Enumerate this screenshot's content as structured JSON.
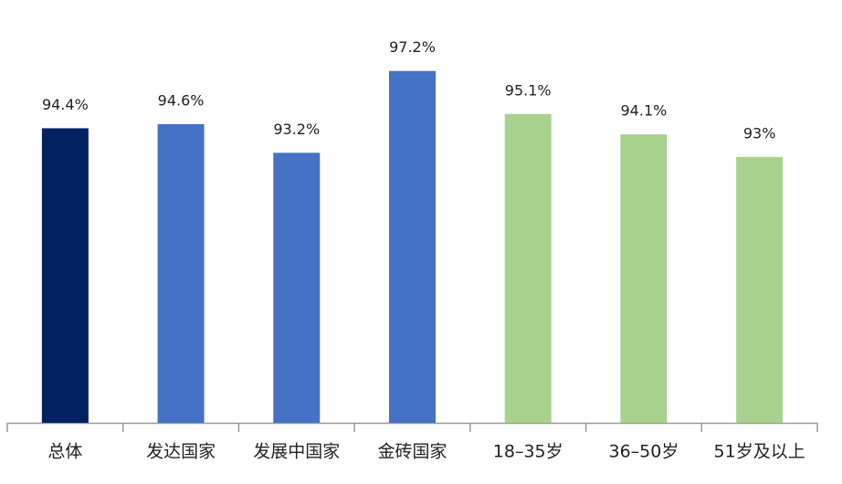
{
  "chart_data": {
    "type": "bar",
    "categories": [
      "总体",
      "发达国家",
      "发展中国家",
      "金砖国家",
      "18–35岁",
      "36–50岁",
      "51岁及以上"
    ],
    "values": [
      94.4,
      94.6,
      93.2,
      97.2,
      95.1,
      94.1,
      93
    ],
    "value_labels": [
      "94.4%",
      "94.6%",
      "93.2%",
      "97.2%",
      "95.1%",
      "94.1%",
      "93%"
    ],
    "colors": [
      "#002060",
      "#4472c4",
      "#4472c4",
      "#4472c4",
      "#a9d18e",
      "#a9d18e",
      "#a9d18e"
    ],
    "ylim": [
      80,
      100
    ]
  }
}
